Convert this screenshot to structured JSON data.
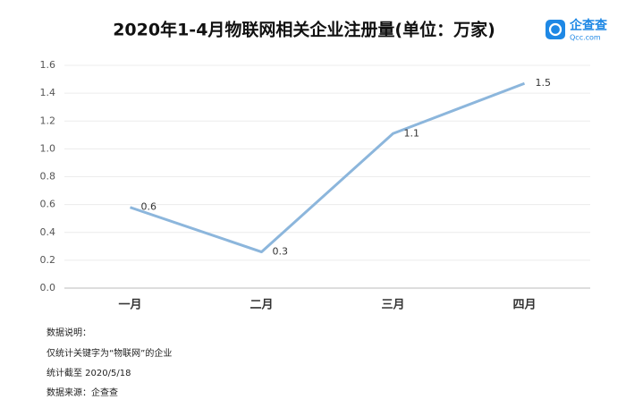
{
  "chart_data": {
    "type": "line",
    "title": "2020年1-4月物联网相关企业注册量(单位：万家)",
    "categories": [
      "一月",
      "二月",
      "三月",
      "四月"
    ],
    "values": [
      0.58,
      0.26,
      1.11,
      1.47
    ],
    "value_labels": [
      "0.6",
      "0.3",
      "1.1",
      "1.5"
    ],
    "color": "#8cb6dc",
    "ylim": [
      0,
      1.6
    ],
    "yticks": [
      {
        "value": 0,
        "label": "0.0"
      },
      0.2,
      0.4,
      0.6,
      0.8,
      {
        "value": 1,
        "label": "1.0"
      },
      1.2,
      1.4,
      1.6
    ],
    "grid": true
  },
  "logo": {
    "name": "企查查",
    "site": "Qcc.com"
  },
  "notes": [
    "数据说明：",
    "仅统计关键字为“物联网”的企业",
    "统计截至 2020/5/18",
    "数据来源：企查查"
  ]
}
